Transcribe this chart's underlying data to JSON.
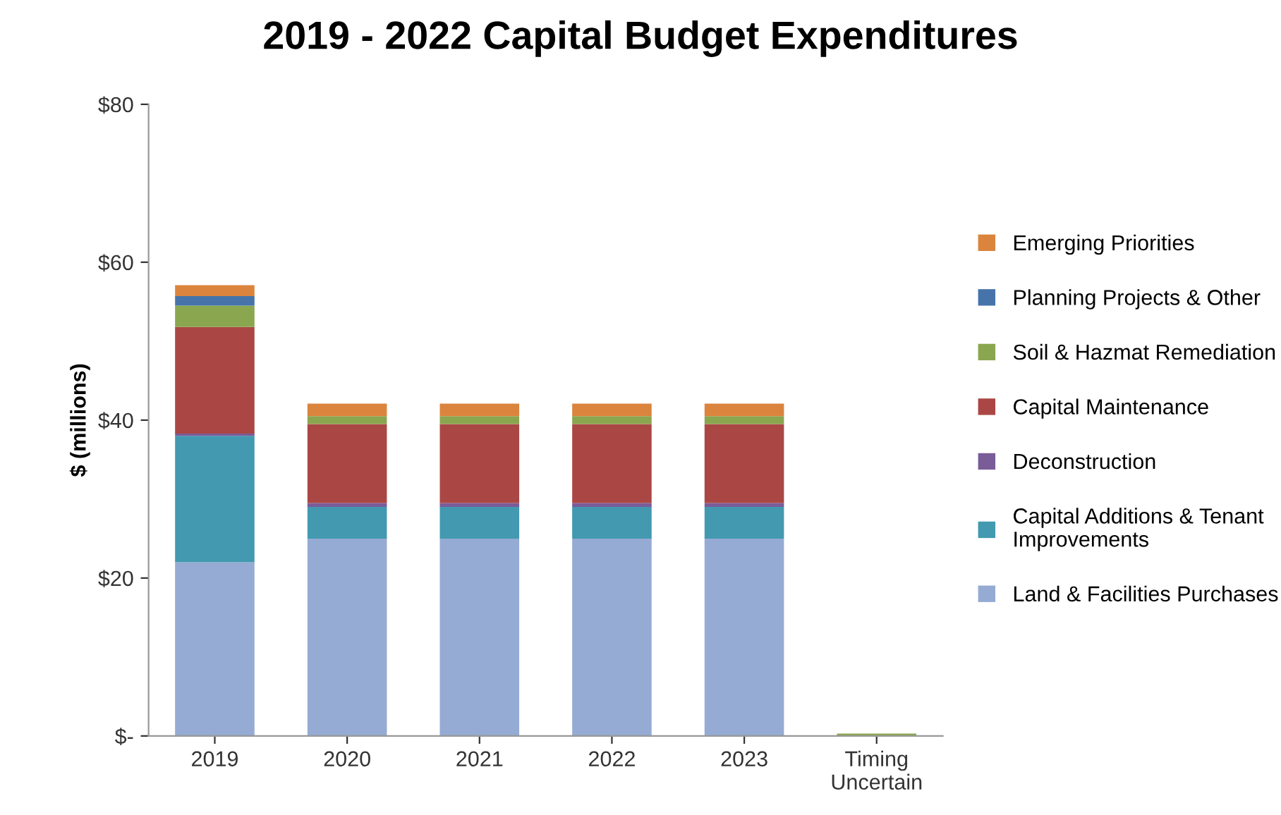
{
  "chart_data": {
    "type": "bar",
    "title": "2019 - 2022 Capital Budget Expenditures",
    "ylabel": "$ (millions)",
    "categories": [
      "2019",
      "2020",
      "2021",
      "2022",
      "2023",
      "Timing\nUncertain"
    ],
    "stacked": true,
    "legend": "right",
    "grid": false,
    "ylim": [
      0,
      80
    ],
    "yticks": [
      {
        "value": 0,
        "label": "$-"
      },
      {
        "value": 20,
        "label": "$20"
      },
      {
        "value": 40,
        "label": "$40"
      },
      {
        "value": 60,
        "label": "$60"
      },
      {
        "value": 80,
        "label": "$80"
      }
    ],
    "series": [
      {
        "name": "Land & Facilities Purchases",
        "color": "#95abd3",
        "values": [
          22.0,
          25.0,
          25.0,
          25.0,
          25.0,
          0
        ]
      },
      {
        "name": "Capital Additions & Tenant\nImprovements",
        "color": "#4299b0",
        "values": [
          16.0,
          4.0,
          4.0,
          4.0,
          4.0,
          0
        ]
      },
      {
        "name": "Deconstruction",
        "color": "#7a5c99",
        "values": [
          0.3,
          0.5,
          0.5,
          0.5,
          0.5,
          0
        ]
      },
      {
        "name": "Capital Maintenance",
        "color": "#aa4744",
        "values": [
          13.5,
          10.0,
          10.0,
          10.0,
          10.0,
          0
        ]
      },
      {
        "name": "Soil & Hazmat Remediation",
        "color": "#8aa64f",
        "values": [
          2.7,
          1.0,
          1.0,
          1.0,
          1.0,
          0.3
        ]
      },
      {
        "name": "Planning Projects & Other",
        "color": "#4674aa",
        "values": [
          1.2,
          0,
          0,
          0,
          0,
          0
        ]
      },
      {
        "name": "Emerging Priorities",
        "color": "#db843d",
        "values": [
          1.4,
          1.6,
          1.6,
          1.6,
          1.6,
          0
        ]
      }
    ]
  }
}
